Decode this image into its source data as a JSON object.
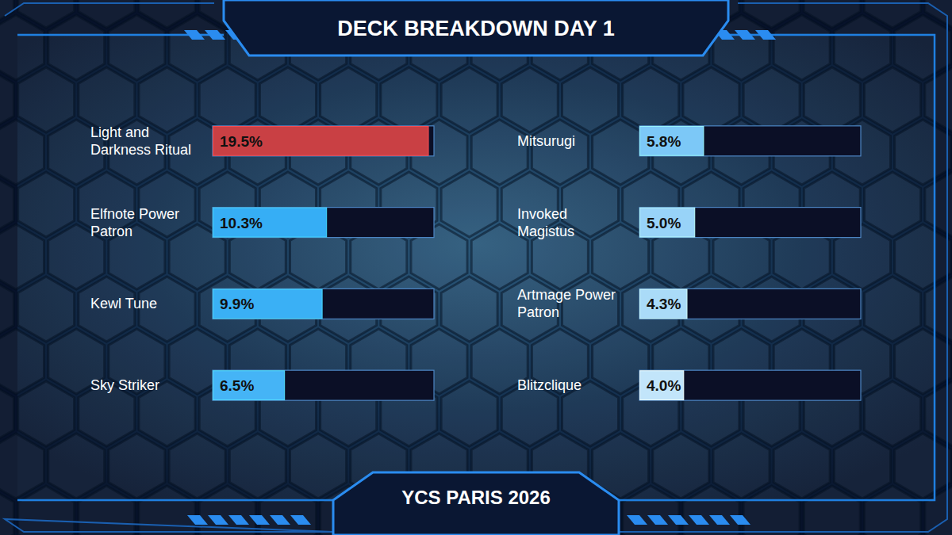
{
  "chart_data": {
    "type": "bar",
    "title": "DECK BREAKDOWN DAY 1",
    "subtitle": "YCS PARIS 2026",
    "orientation": "horizontal",
    "categories": [
      "Light and Darkness Ritual",
      "Elfnote Power Patron",
      "Kewl Tune",
      "Sky Striker",
      "Mitsurugi",
      "Invoked Magistus",
      "Artmage Power Patron",
      "Blitzclique"
    ],
    "values": [
      19.5,
      10.3,
      9.9,
      6.5,
      5.8,
      5.0,
      4.3,
      4.0
    ],
    "value_labels": [
      "19.5%",
      "10.3%",
      "9.9%",
      "6.5%",
      "5.8%",
      "5.0%",
      "4.3%",
      "4.0%"
    ],
    "colors": [
      "#c94044",
      "#36aef5",
      "#3ab0f5",
      "#45b4f6",
      "#7cc8f7",
      "#98d3f8",
      "#aadbf8",
      "#c2e5fa"
    ],
    "xlim": [
      0,
      20
    ],
    "data_labels": true,
    "tick_labels": false,
    "grid": false
  }
}
